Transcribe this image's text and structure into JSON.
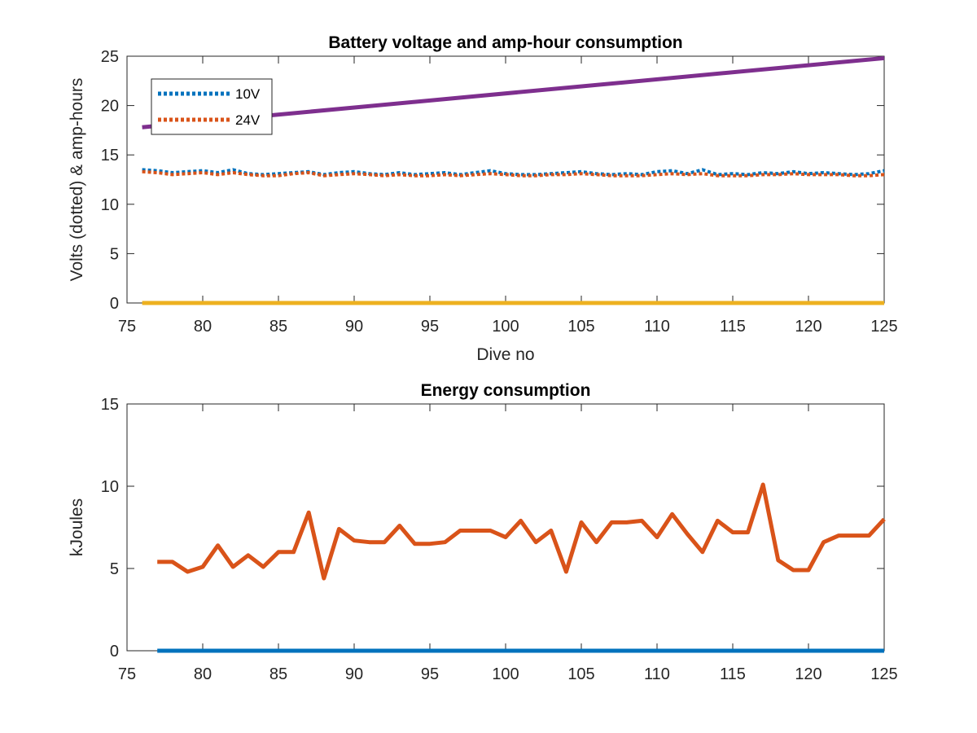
{
  "chart_data": [
    {
      "type": "line",
      "title": "Battery voltage and amp-hour consumption",
      "xlabel": "Dive no",
      "ylabel": "Volts (dotted) & amp-hours",
      "xlim": [
        75,
        125
      ],
      "ylim": [
        0,
        25
      ],
      "xticks": [
        75,
        80,
        85,
        90,
        95,
        100,
        105,
        110,
        115,
        120,
        125
      ],
      "yticks": [
        0,
        5,
        10,
        15,
        20,
        25
      ],
      "grid": false,
      "legend_position": "top-left",
      "series": [
        {
          "name": "10V",
          "style": "dotted",
          "color": "#0072BD",
          "x": [
            76,
            77,
            78,
            79,
            80,
            81,
            82,
            83,
            84,
            85,
            86,
            87,
            88,
            89,
            90,
            91,
            92,
            93,
            94,
            95,
            96,
            97,
            98,
            99,
            100,
            101,
            102,
            103,
            104,
            105,
            106,
            107,
            108,
            109,
            110,
            111,
            112,
            113,
            114,
            115,
            116,
            117,
            118,
            119,
            120,
            121,
            122,
            123,
            124,
            125
          ],
          "values": [
            13.5,
            13.4,
            13.2,
            13.3,
            13.4,
            13.2,
            13.5,
            13.1,
            13.0,
            13.1,
            13.2,
            13.3,
            13.0,
            13.2,
            13.3,
            13.1,
            13.0,
            13.2,
            13.0,
            13.1,
            13.2,
            13.0,
            13.2,
            13.4,
            13.1,
            13.0,
            13.0,
            13.1,
            13.2,
            13.3,
            13.1,
            13.0,
            13.1,
            13.0,
            13.3,
            13.4,
            13.1,
            13.5,
            13.0,
            13.1,
            13.0,
            13.2,
            13.1,
            13.3,
            13.1,
            13.2,
            13.1,
            13.0,
            13.1,
            13.4
          ]
        },
        {
          "name": "24V",
          "style": "dotted",
          "color": "#D95319",
          "x": [
            76,
            77,
            78,
            79,
            80,
            81,
            82,
            83,
            84,
            85,
            86,
            87,
            88,
            89,
            90,
            91,
            92,
            93,
            94,
            95,
            96,
            97,
            98,
            99,
            100,
            101,
            102,
            103,
            104,
            105,
            106,
            107,
            108,
            109,
            110,
            111,
            112,
            113,
            114,
            115,
            116,
            117,
            118,
            119,
            120,
            121,
            122,
            123,
            124,
            125
          ],
          "values": [
            13.3,
            13.2,
            13.0,
            13.1,
            13.2,
            13.0,
            13.2,
            13.0,
            12.9,
            12.9,
            13.1,
            13.2,
            12.9,
            13.0,
            13.1,
            13.0,
            12.9,
            13.0,
            12.9,
            12.9,
            13.0,
            12.9,
            13.0,
            13.1,
            13.0,
            12.9,
            12.9,
            13.0,
            13.0,
            13.1,
            13.0,
            12.9,
            12.9,
            12.9,
            13.0,
            13.1,
            13.0,
            13.1,
            12.9,
            12.9,
            12.9,
            13.0,
            13.0,
            13.1,
            13.0,
            13.0,
            13.0,
            12.9,
            12.9,
            13.0
          ]
        },
        {
          "style": "solid",
          "color": "#7E2F8E",
          "x": [
            76,
            125
          ],
          "values": [
            17.8,
            24.8
          ]
        },
        {
          "style": "solid",
          "color": "#EDB120",
          "x": [
            76,
            125
          ],
          "values": [
            0,
            0
          ]
        }
      ]
    },
    {
      "type": "line",
      "title": "Energy consumption",
      "xlabel": "",
      "ylabel": "kJoules",
      "xlim": [
        75,
        125
      ],
      "ylim": [
        0,
        15
      ],
      "xticks": [
        75,
        80,
        85,
        90,
        95,
        100,
        105,
        110,
        115,
        120,
        125
      ],
      "yticks": [
        0,
        5,
        10,
        15
      ],
      "grid": false,
      "series": [
        {
          "style": "solid",
          "color": "#D95319",
          "x": [
            77,
            78,
            79,
            80,
            81,
            82,
            83,
            84,
            85,
            86,
            87,
            88,
            89,
            90,
            91,
            92,
            93,
            94,
            95,
            96,
            97,
            98,
            99,
            100,
            101,
            102,
            103,
            104,
            105,
            106,
            107,
            108,
            109,
            110,
            111,
            112,
            113,
            114,
            115,
            116,
            117,
            118,
            119,
            120,
            121,
            122,
            123,
            124,
            125
          ],
          "values": [
            5.4,
            5.4,
            4.8,
            5.1,
            6.4,
            5.1,
            5.8,
            5.1,
            6.0,
            6.0,
            8.4,
            4.4,
            7.4,
            6.7,
            6.6,
            6.6,
            7.6,
            6.5,
            6.5,
            6.6,
            7.3,
            7.3,
            7.3,
            6.9,
            7.9,
            6.6,
            7.3,
            4.8,
            7.8,
            6.6,
            7.8,
            7.8,
            7.9,
            6.9,
            8.3,
            7.1,
            6.0,
            7.9,
            7.2,
            7.2,
            10.1,
            5.5,
            4.9,
            4.9,
            6.6,
            7.0,
            7.0,
            7.0,
            8.0
          ]
        },
        {
          "style": "solid",
          "color": "#0072BD",
          "x": [
            77,
            125
          ],
          "values": [
            0,
            0
          ]
        }
      ]
    }
  ]
}
